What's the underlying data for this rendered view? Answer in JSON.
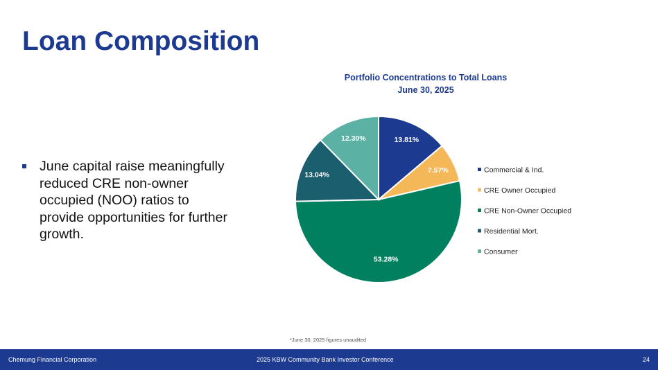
{
  "slide": {
    "title": "Loan Composition",
    "bullet": "June capital raise meaningfully reduced CRE non-owner occupied (NOO) ratios to provide opportunities for further growth.",
    "footnote": "*June 30, 2025 figures unaudited"
  },
  "footer": {
    "company": "Chemung Financial Corporation",
    "event": "2025 KBW Community Bank Investor Conference",
    "page_number": "24"
  },
  "chart_data": {
    "type": "pie",
    "title": "Portfolio Concentrations to Total Loans",
    "subtitle": "June 30, 2025",
    "legend_position": "right",
    "slices": [
      {
        "name": "Commercial & Ind.",
        "value": 13.81,
        "label": "13.81%",
        "color": "#1c3a8f"
      },
      {
        "name": "CRE Owner Occupied",
        "value": 7.57,
        "label": "7.57%",
        "color": "#f5b859"
      },
      {
        "name": "CRE Non-Owner Occupied",
        "value": 53.28,
        "label": "53.28%",
        "color": "#00805e"
      },
      {
        "name": "Residential Mort.",
        "value": 13.04,
        "label": "13.04%",
        "color": "#1b5e6e"
      },
      {
        "name": "Consumer",
        "value": 12.3,
        "label": "12.30%",
        "color": "#5bb2a4"
      }
    ]
  }
}
